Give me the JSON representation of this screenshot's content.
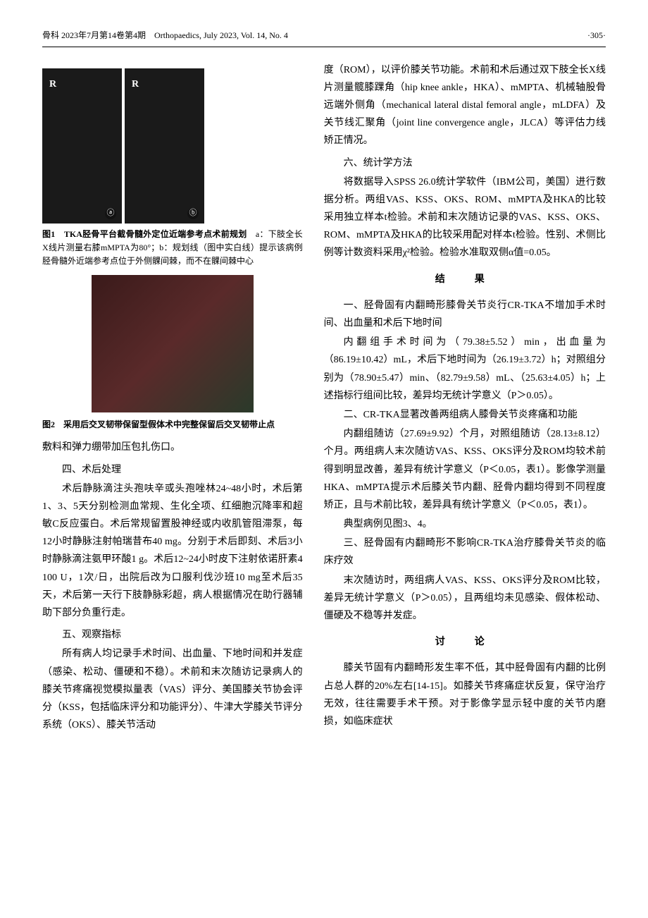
{
  "header": {
    "journal": "骨科 2023年7月第14卷第4期　Orthopaedics, July 2023, Vol. 14, No. 4",
    "page": "·305·"
  },
  "figure1": {
    "label_a": "ⓐ",
    "label_b": "ⓑ",
    "r_marker": "R",
    "caption_bold": "图1　TKA胫骨平台截骨髓外定位近端参考点术前规划",
    "caption_rest": "　a：下肢全长X线片测量右膝mMPTA为80°；b：规划线（图中实白线）提示该病例胫骨髓外近端参考点位于外侧髁间棘，而不在髁间棘中心"
  },
  "figure2": {
    "caption_bold": "图2　采用后交叉韧带保留型假体术中完整保留后交叉韧带止点"
  },
  "left_paragraphs": {
    "p_pre_fig2_tail": "敷料和弹力绷带加压包扎伤口。",
    "h4": "四、术后处理",
    "p4": "术后静脉滴注头孢呋辛或头孢唑林24~48小时，术后第1、3、5天分别检测血常规、生化全项、红细胞沉降率和超敏C反应蛋白。术后常规留置股神经或内收肌管阻滞泵，每12小时静脉注射帕瑞昔布40 mg。分别于术后即刻、术后3小时静脉滴注氨甲环酸1 g。术后12~24小时皮下注射依诺肝素4 100 U，1次/日，出院后改为口服利伐沙班10 mg至术后35天，术后第一天行下肢静脉彩超，病人根据情况在助行器辅助下部分负重行走。",
    "h5": "五、观察指标",
    "p5": "所有病人均记录手术时间、出血量、下地时间和并发症（感染、松动、僵硬和不稳）。术前和末次随访记录病人的膝关节疼痛视觉模拟量表（VAS）评分、美国膝关节协会评分（KSS，包括临床评分和功能评分）、牛津大学膝关节评分系统（OKS）、膝关节活动"
  },
  "right_paragraphs": {
    "p_rom": "度（ROM），以评价膝关节功能。术前和术后通过双下肢全长X线片测量髋膝踝角（hip knee ankle，HKA）、mMPTA、机械轴股骨远端外侧角（mechanical lateral distal femoral angle，mLDFA）及关节线汇聚角（joint line convergence angle，JLCA）等评估力线矫正情况。",
    "h6": "六、统计学方法",
    "p6": "将数据导入SPSS 26.0统计学软件（IBM公司，美国）进行数据分析。两组VAS、KSS、OKS、ROM、mMPTA及HKA的比较采用独立样本t检验。术前和末次随访记录的VAS、KSS、OKS、ROM、mMPTA及HKA的比较采用配对样本t检验。性别、术侧比例等计数资料采用χ²检验。检验水准取双侧α值=0.05。",
    "results_heading": "结　果",
    "r1_h": "一、胫骨固有内翻畸形膝骨关节炎行CR-TKA不增加手术时间、出血量和术后下地时间",
    "r1_p": "内翻组手术时间为（79.38±5.52）min，出血量为（86.19±10.42）mL，术后下地时间为（26.19±3.72）h；对照组分别为（78.90±5.47）min、（82.79±9.58）mL、（25.63±4.05）h；上述指标行组间比较，差异均无统计学意义（P＞0.05）。",
    "r2_h": "二、CR-TKA显著改善两组病人膝骨关节炎疼痛和功能",
    "r2_p1": "内翻组随访（27.69±9.92）个月，对照组随访（28.13±8.12）个月。两组病人末次随访VAS、KSS、OKS评分及ROM均较术前得到明显改善，差异有统计学意义（P＜0.05，表1）。影像学测量HKA、mMPTA提示术后膝关节内翻、胫骨内翻均得到不同程度矫正，且与术前比较，差异具有统计学意义（P＜0.05，表1）。",
    "r2_p2": "典型病例见图3、4。",
    "r3_h": "三、胫骨固有内翻畸形不影响CR-TKA治疗膝骨关节炎的临床疗效",
    "r3_p": "末次随访时，两组病人VAS、KSS、OKS评分及ROM比较，差异无统计学意义（P＞0.05），且两组均未见感染、假体松动、僵硬及不稳等并发症。",
    "discussion_heading": "讨　论",
    "d_p": "膝关节固有内翻畸形发生率不低，其中胫骨固有内翻的比例占总人群的20%左右[14-15]。如膝关节疼痛症状反复，保守治疗无效，往往需要手术干预。对于影像学显示轻中度的关节内磨损，如临床症状"
  }
}
